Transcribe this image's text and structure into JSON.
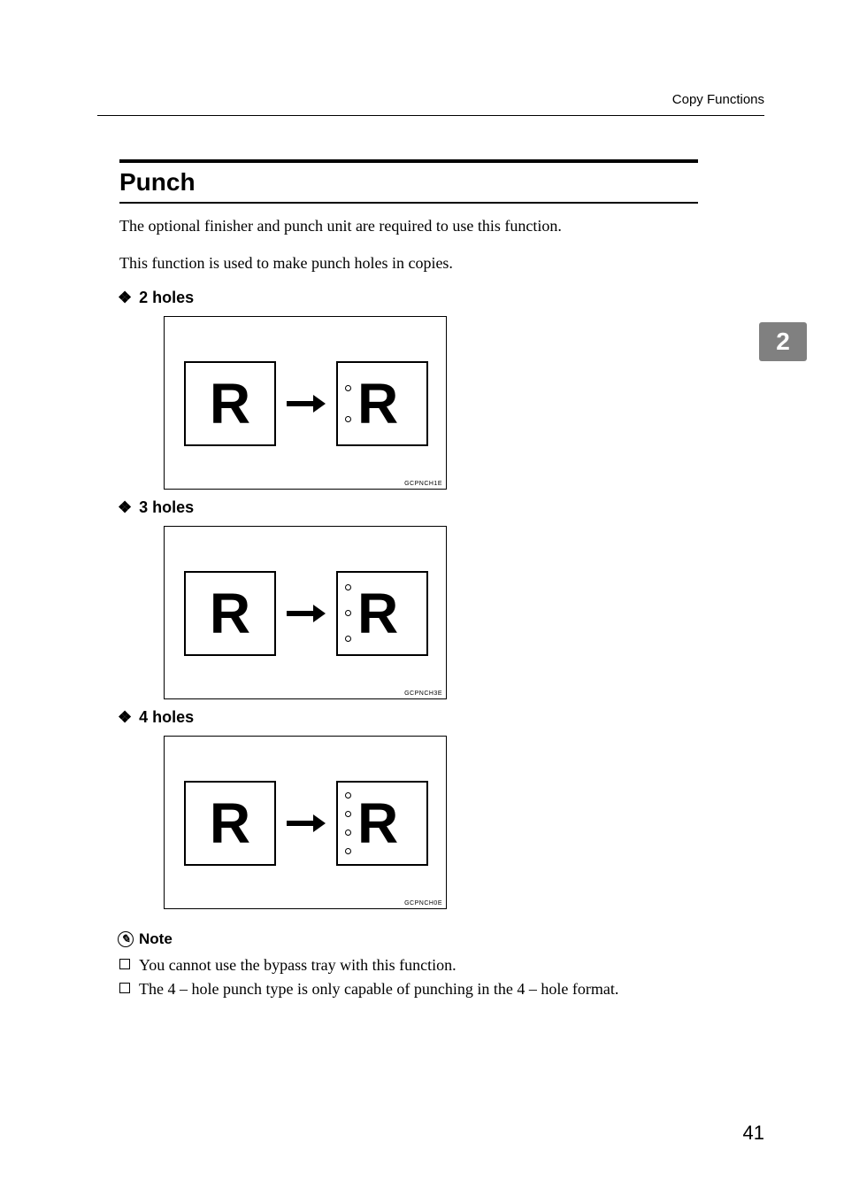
{
  "header": {
    "category": "Copy Functions"
  },
  "topic": {
    "title": "Punch",
    "intro1": "The optional finisher and punch unit are required to use this function.",
    "intro2": "This function is used to make punch holes in copies."
  },
  "sections": {
    "s2": {
      "label": "2 holes",
      "code": "GCPNCH1E",
      "glyph": "R",
      "holes": 2,
      "gap": 28
    },
    "s3": {
      "label": "3 holes",
      "code": "GCPNCH3E",
      "glyph": "R",
      "holes": 3,
      "gap": 22
    },
    "s4": {
      "label": "4 holes",
      "code": "GCPNCH0E",
      "glyph": "R",
      "holes": 4,
      "gap": 14
    }
  },
  "note": {
    "heading": "Note",
    "items": [
      "You cannot use the bypass tray with this function.",
      "The 4 – hole punch type is only capable of punching in the 4 – hole format."
    ]
  },
  "tab": {
    "chapter": "2"
  },
  "footer": {
    "page": "41"
  },
  "colors": {
    "tab_bg": "#808080",
    "tab_fg": "#ffffff"
  }
}
